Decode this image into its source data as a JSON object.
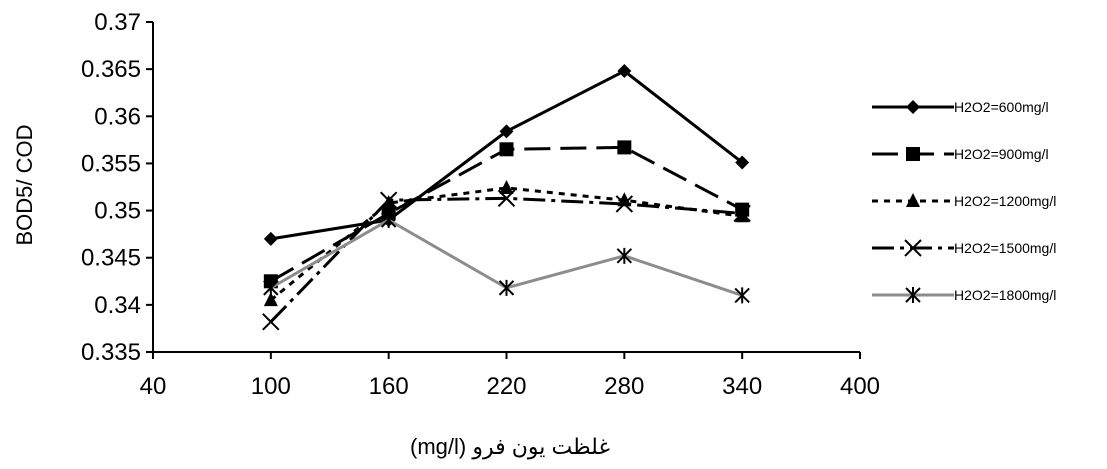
{
  "chart_data": {
    "type": "line",
    "title": "",
    "xlabel": "غلظت یون فرو (mg/l)",
    "ylabel": "BOD5/ COD",
    "xlim": [
      40,
      400
    ],
    "ylim": [
      0.335,
      0.37
    ],
    "xticks": [
      40,
      100,
      160,
      220,
      280,
      340,
      400
    ],
    "xtick_labels": [
      "40",
      "100",
      "160",
      "220",
      "280",
      "340",
      "400"
    ],
    "yticks": [
      0.335,
      0.34,
      0.345,
      0.35,
      0.355,
      0.36,
      0.365,
      0.37
    ],
    "ytick_labels": [
      "0.335",
      "0.34",
      "0.345",
      "0.35",
      "0.355",
      "0.36",
      "0.365",
      "0.37"
    ],
    "grid": false,
    "legend_position": "right",
    "series": [
      {
        "name": "H2O2=600mg/l",
        "color": "#000000",
        "dash": "",
        "marker": "diamond",
        "x": [
          100,
          160,
          220,
          280,
          340
        ],
        "y": [
          0.347,
          0.349,
          0.3584,
          0.3648,
          0.3551
        ]
      },
      {
        "name": "H2O2=900mg/l",
        "color": "#000000",
        "dash": "26 10",
        "marker": "square",
        "x": [
          100,
          160,
          220,
          280,
          340
        ],
        "y": [
          0.3425,
          0.3497,
          0.3565,
          0.3567,
          0.3501
        ]
      },
      {
        "name": "H2O2=1200mg/l",
        "color": "#000000",
        "dash": "6 6",
        "marker": "triangle",
        "x": [
          100,
          160,
          220,
          280,
          340
        ],
        "y": [
          0.3405,
          0.3508,
          0.3524,
          0.3511,
          0.3494
        ]
      },
      {
        "name": "H2O2=1500mg/l",
        "color": "#000000",
        "dash": "22 6 4 6",
        "marker": "x",
        "x": [
          100,
          160,
          220,
          280,
          340
        ],
        "y": [
          0.3382,
          0.3511,
          0.3513,
          0.3507,
          0.3497
        ]
      },
      {
        "name": "H2O2=1800mg/l",
        "color": "#8c8c8c",
        "dash": "",
        "marker": "star",
        "x": [
          100,
          160,
          220,
          280,
          340
        ],
        "y": [
          0.3418,
          0.349,
          0.3418,
          0.3452,
          0.341
        ]
      }
    ]
  }
}
